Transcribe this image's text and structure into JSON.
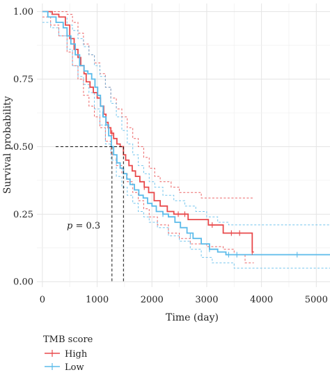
{
  "chart_data": {
    "type": "line",
    "subtype": "kaplan-meier survival curve",
    "title": "",
    "xlabel": "Time (day)",
    "ylabel": "Survival probability",
    "xlim": [
      -100,
      5250
    ],
    "ylim": [
      -0.02,
      1.03
    ],
    "x_ticks": [
      0,
      1000,
      2000,
      3000,
      4000,
      5000
    ],
    "y_ticks": [
      0.0,
      0.25,
      0.5,
      0.75,
      1.0
    ],
    "x_tick_labels": [
      "0",
      "1000",
      "2000",
      "3000",
      "4000",
      "5000"
    ],
    "y_tick_labels": [
      "0.00",
      "0.25",
      "0.50",
      "0.75",
      "1.00"
    ],
    "grid": true,
    "legend_position": "bottom",
    "legend_title": "TMB score",
    "annotation_prefix": "p",
    "annotation_value": " = 0.3",
    "median_survival": {
      "level": 0.5,
      "low_x": 1270,
      "high_x": 1480
    },
    "series": [
      {
        "name": "High",
        "color": "#e8494b",
        "steps": [
          [
            0,
            1.0
          ],
          [
            180,
            0.99
          ],
          [
            300,
            0.98
          ],
          [
            420,
            0.95
          ],
          [
            500,
            0.9
          ],
          [
            580,
            0.86
          ],
          [
            650,
            0.83
          ],
          [
            700,
            0.8
          ],
          [
            760,
            0.77
          ],
          [
            800,
            0.74
          ],
          [
            870,
            0.72
          ],
          [
            930,
            0.7
          ],
          [
            1000,
            0.68
          ],
          [
            1060,
            0.65
          ],
          [
            1120,
            0.62
          ],
          [
            1160,
            0.59
          ],
          [
            1200,
            0.57
          ],
          [
            1250,
            0.55
          ],
          [
            1300,
            0.53
          ],
          [
            1360,
            0.51
          ],
          [
            1420,
            0.5
          ],
          [
            1480,
            0.47
          ],
          [
            1520,
            0.45
          ],
          [
            1580,
            0.43
          ],
          [
            1640,
            0.41
          ],
          [
            1700,
            0.39
          ],
          [
            1780,
            0.37
          ],
          [
            1860,
            0.35
          ],
          [
            1940,
            0.33
          ],
          [
            2040,
            0.3
          ],
          [
            2150,
            0.28
          ],
          [
            2280,
            0.26
          ],
          [
            2400,
            0.25
          ],
          [
            2560,
            0.25
          ],
          [
            2660,
            0.23
          ],
          [
            2900,
            0.23
          ],
          [
            3030,
            0.21
          ],
          [
            3280,
            0.21
          ],
          [
            3300,
            0.18
          ],
          [
            3800,
            0.18
          ],
          [
            3830,
            0.11
          ],
          [
            3860,
            0.11
          ]
        ],
        "lower": [
          [
            0,
            0.98
          ],
          [
            150,
            0.95
          ],
          [
            300,
            0.91
          ],
          [
            450,
            0.85
          ],
          [
            550,
            0.8
          ],
          [
            650,
            0.75
          ],
          [
            750,
            0.69
          ],
          [
            850,
            0.65
          ],
          [
            950,
            0.61
          ],
          [
            1050,
            0.57
          ],
          [
            1150,
            0.52
          ],
          [
            1250,
            0.47
          ],
          [
            1350,
            0.43
          ],
          [
            1450,
            0.4
          ],
          [
            1550,
            0.37
          ],
          [
            1650,
            0.33
          ],
          [
            1750,
            0.3
          ],
          [
            1850,
            0.27
          ],
          [
            1950,
            0.24
          ],
          [
            2100,
            0.21
          ],
          [
            2300,
            0.18
          ],
          [
            2500,
            0.16
          ],
          [
            2700,
            0.14
          ],
          [
            3000,
            0.13
          ],
          [
            3300,
            0.12
          ],
          [
            3500,
            0.1
          ],
          [
            3700,
            0.07
          ],
          [
            3860,
            0.07
          ]
        ],
        "upper": [
          [
            0,
            1.0
          ],
          [
            200,
            1.0
          ],
          [
            350,
            1.0
          ],
          [
            450,
            0.99
          ],
          [
            550,
            0.96
          ],
          [
            650,
            0.92
          ],
          [
            750,
            0.88
          ],
          [
            850,
            0.84
          ],
          [
            950,
            0.81
          ],
          [
            1050,
            0.77
          ],
          [
            1150,
            0.72
          ],
          [
            1250,
            0.68
          ],
          [
            1350,
            0.64
          ],
          [
            1450,
            0.61
          ],
          [
            1550,
            0.57
          ],
          [
            1650,
            0.53
          ],
          [
            1750,
            0.5
          ],
          [
            1850,
            0.46
          ],
          [
            1950,
            0.42
          ],
          [
            2050,
            0.39
          ],
          [
            2150,
            0.37
          ],
          [
            2350,
            0.35
          ],
          [
            2500,
            0.33
          ],
          [
            2750,
            0.33
          ],
          [
            2900,
            0.31
          ],
          [
            3300,
            0.31
          ],
          [
            3860,
            0.31
          ]
        ],
        "censored": [
          [
            1270,
            0.55
          ],
          [
            1860,
            0.35
          ],
          [
            2480,
            0.25
          ],
          [
            2600,
            0.25
          ],
          [
            3100,
            0.21
          ],
          [
            3450,
            0.18
          ],
          [
            3600,
            0.18
          ],
          [
            3830,
            0.11
          ]
        ]
      },
      {
        "name": "Low",
        "color": "#5bbbea",
        "steps": [
          [
            0,
            1.0
          ],
          [
            100,
            0.98
          ],
          [
            250,
            0.96
          ],
          [
            380,
            0.94
          ],
          [
            450,
            0.91
          ],
          [
            520,
            0.88
          ],
          [
            600,
            0.84
          ],
          [
            680,
            0.8
          ],
          [
            760,
            0.78
          ],
          [
            830,
            0.77
          ],
          [
            900,
            0.75
          ],
          [
            960,
            0.72
          ],
          [
            1010,
            0.69
          ],
          [
            1060,
            0.65
          ],
          [
            1110,
            0.61
          ],
          [
            1160,
            0.58
          ],
          [
            1210,
            0.54
          ],
          [
            1260,
            0.5
          ],
          [
            1300,
            0.47
          ],
          [
            1360,
            0.44
          ],
          [
            1420,
            0.42
          ],
          [
            1480,
            0.4
          ],
          [
            1540,
            0.38
          ],
          [
            1600,
            0.36
          ],
          [
            1680,
            0.34
          ],
          [
            1760,
            0.32
          ],
          [
            1840,
            0.31
          ],
          [
            1920,
            0.29
          ],
          [
            2000,
            0.28
          ],
          [
            2080,
            0.26
          ],
          [
            2200,
            0.25
          ],
          [
            2300,
            0.24
          ],
          [
            2420,
            0.22
          ],
          [
            2520,
            0.2
          ],
          [
            2640,
            0.18
          ],
          [
            2750,
            0.16
          ],
          [
            2900,
            0.14
          ],
          [
            3050,
            0.12
          ],
          [
            3200,
            0.11
          ],
          [
            3350,
            0.1
          ],
          [
            5250,
            0.1
          ]
        ],
        "lower": [
          [
            0,
            0.96
          ],
          [
            150,
            0.94
          ],
          [
            300,
            0.91
          ],
          [
            450,
            0.86
          ],
          [
            550,
            0.8
          ],
          [
            650,
            0.76
          ],
          [
            750,
            0.73
          ],
          [
            850,
            0.7
          ],
          [
            950,
            0.64
          ],
          [
            1050,
            0.58
          ],
          [
            1150,
            0.51
          ],
          [
            1250,
            0.45
          ],
          [
            1350,
            0.39
          ],
          [
            1450,
            0.35
          ],
          [
            1550,
            0.32
          ],
          [
            1650,
            0.29
          ],
          [
            1750,
            0.26
          ],
          [
            1850,
            0.24
          ],
          [
            1950,
            0.22
          ],
          [
            2100,
            0.2
          ],
          [
            2300,
            0.17
          ],
          [
            2500,
            0.15
          ],
          [
            2700,
            0.12
          ],
          [
            2900,
            0.09
          ],
          [
            3100,
            0.07
          ],
          [
            3300,
            0.07
          ],
          [
            3500,
            0.05
          ],
          [
            5250,
            0.05
          ]
        ],
        "upper": [
          [
            0,
            1.0
          ],
          [
            150,
            0.99
          ],
          [
            300,
            0.98
          ],
          [
            450,
            0.95
          ],
          [
            550,
            0.93
          ],
          [
            650,
            0.9
          ],
          [
            750,
            0.87
          ],
          [
            850,
            0.84
          ],
          [
            950,
            0.8
          ],
          [
            1050,
            0.76
          ],
          [
            1150,
            0.72
          ],
          [
            1250,
            0.66
          ],
          [
            1350,
            0.61
          ],
          [
            1450,
            0.56
          ],
          [
            1550,
            0.51
          ],
          [
            1650,
            0.47
          ],
          [
            1750,
            0.43
          ],
          [
            1850,
            0.4
          ],
          [
            1950,
            0.37
          ],
          [
            2050,
            0.35
          ],
          [
            2200,
            0.32
          ],
          [
            2400,
            0.3
          ],
          [
            2600,
            0.28
          ],
          [
            2800,
            0.26
          ],
          [
            3000,
            0.24
          ],
          [
            3200,
            0.22
          ],
          [
            3400,
            0.21
          ],
          [
            5250,
            0.21
          ]
        ],
        "censored": [
          [
            1100,
            0.62
          ],
          [
            2200,
            0.25
          ],
          [
            2700,
            0.17
          ],
          [
            3050,
            0.12
          ],
          [
            3400,
            0.1
          ],
          [
            3550,
            0.1
          ],
          [
            4650,
            0.1
          ]
        ]
      }
    ]
  }
}
